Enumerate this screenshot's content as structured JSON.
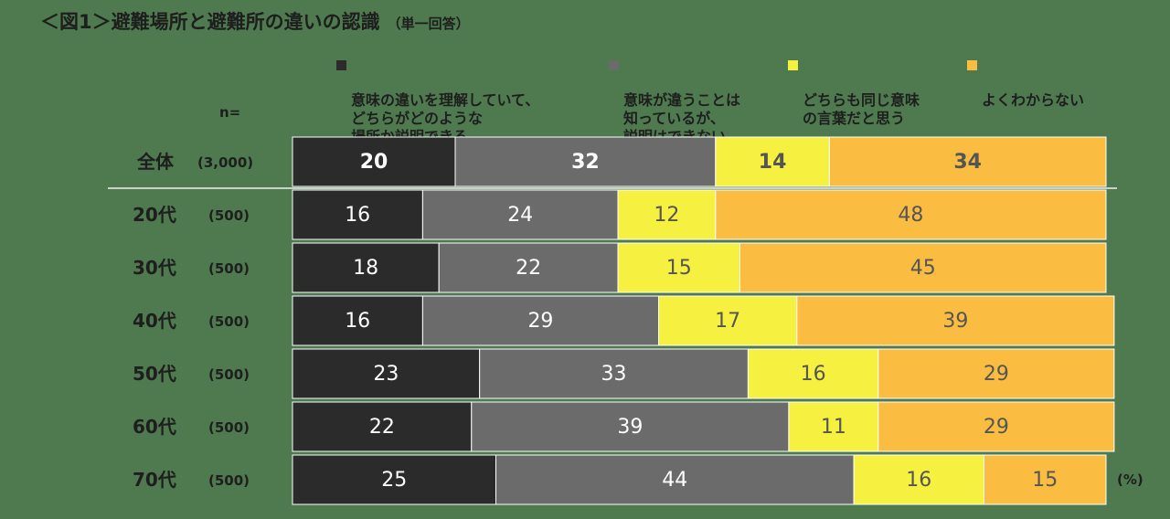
{
  "title": {
    "main": "＜図1＞避難場所と避難所の違いの認識",
    "sub": "（単一回答）"
  },
  "n_label": "n=",
  "unit_label": "(%)",
  "chart_data": {
    "type": "bar",
    "orientation": "horizontal",
    "stacked": true,
    "normalized_to": 100,
    "categories": [
      "全体",
      "20代",
      "30代",
      "40代",
      "50代",
      "60代",
      "70代"
    ],
    "sample_sizes": [
      "(3,000)",
      "(500)",
      "(500)",
      "(500)",
      "(500)",
      "(500)",
      "(500)"
    ],
    "series": [
      {
        "name": "意味の違いを理解していて、\nどちらがどのような\n場所か説明できる",
        "color": "#2b2b2b",
        "label_color": "#ffffff",
        "values": [
          20,
          16,
          18,
          16,
          23,
          22,
          25
        ]
      },
      {
        "name": "意味が違うことは\n知っているが、\n説明はできない",
        "color": "#6b6b6b",
        "label_color": "#ffffff",
        "values": [
          32,
          24,
          22,
          29,
          33,
          39,
          44
        ]
      },
      {
        "name": "どちらも同じ意味\nの言葉だと思う",
        "color": "#f6f040",
        "label_color": "#555555",
        "values": [
          14,
          12,
          15,
          17,
          16,
          11,
          16
        ]
      },
      {
        "name": "よくわからない",
        "color": "#fbbd41",
        "label_color": "#555555",
        "values": [
          34,
          48,
          45,
          39,
          29,
          29,
          15
        ]
      }
    ],
    "legend_position": "top",
    "xlim": [
      0,
      100
    ],
    "grid": false
  }
}
